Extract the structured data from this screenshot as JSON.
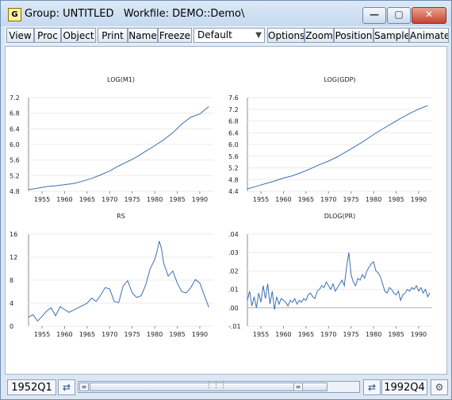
{
  "window": {
    "title": "Group: UNTITLED   Workfile: DEMO::Demo\\",
    "app_icon_letter": "G",
    "minimize_glyph": "—",
    "maximize_glyph": "▢",
    "close_glyph": "✕"
  },
  "toolbar": {
    "buttons": [
      "View",
      "Proc",
      "Object",
      "Print",
      "Name",
      "Freeze",
      "Options",
      "Zoom",
      "Position",
      "Sample",
      "Animate"
    ],
    "combo_value": "Default"
  },
  "status": {
    "start": "1952Q1",
    "end": "1992Q4",
    "left_arrows_icon": "swap-arrows-icon",
    "right_arrows_icon": "swap-arrows-icon",
    "settings_icon": "gear-icon"
  },
  "colors": {
    "line": "#3b6fb6",
    "axis": "#8c8c8c"
  },
  "chart_data": [
    {
      "type": "line",
      "title": "LOG(M1)",
      "xlim": [
        1952,
        1993
      ],
      "ylim": [
        4.8,
        7.2
      ],
      "yticks": [
        "4.8",
        "5.2",
        "5.6",
        "6.0",
        "6.4",
        "6.8",
        "7.2"
      ],
      "ytick_values": [
        4.8,
        5.2,
        5.6,
        6.0,
        6.4,
        6.8,
        7.2
      ],
      "xticks": [
        "1955",
        "1960",
        "1965",
        "1970",
        "1975",
        "1980",
        "1985",
        "1990"
      ],
      "x": [
        1952,
        1954,
        1956,
        1958,
        1960,
        1962,
        1964,
        1966,
        1968,
        1970,
        1972,
        1974,
        1976,
        1978,
        1980,
        1982,
        1984,
        1986,
        1988,
        1990,
        1992
      ],
      "values": [
        4.84,
        4.88,
        4.92,
        4.94,
        4.97,
        5.0,
        5.06,
        5.13,
        5.22,
        5.32,
        5.45,
        5.56,
        5.68,
        5.83,
        5.97,
        6.12,
        6.3,
        6.52,
        6.7,
        6.78,
        6.97
      ]
    },
    {
      "type": "line",
      "title": "LOG(GDP)",
      "xlim": [
        1952,
        1993
      ],
      "ylim": [
        4.4,
        7.6
      ],
      "yticks": [
        "4.4",
        "4.8",
        "5.2",
        "5.6",
        "6.0",
        "6.4",
        "6.8",
        "7.2",
        "7.6"
      ],
      "ytick_values": [
        4.4,
        4.8,
        5.2,
        5.6,
        6.0,
        6.4,
        6.8,
        7.2,
        7.6
      ],
      "xticks": [
        "1955",
        "1960",
        "1965",
        "1970",
        "1975",
        "1980",
        "1985",
        "1990"
      ],
      "x": [
        1952,
        1954,
        1956,
        1958,
        1960,
        1962,
        1964,
        1966,
        1968,
        1970,
        1972,
        1974,
        1976,
        1978,
        1980,
        1982,
        1984,
        1986,
        1988,
        1990,
        1992
      ],
      "values": [
        4.48,
        4.57,
        4.66,
        4.75,
        4.85,
        4.93,
        5.04,
        5.17,
        5.31,
        5.43,
        5.58,
        5.76,
        5.94,
        6.13,
        6.34,
        6.53,
        6.71,
        6.89,
        7.06,
        7.21,
        7.33
      ]
    },
    {
      "type": "line",
      "title": "RS",
      "xlim": [
        1952,
        1993
      ],
      "ylim": [
        0,
        16
      ],
      "yticks": [
        "0",
        "4",
        "8",
        "12",
        "16"
      ],
      "ytick_values": [
        0,
        4,
        8,
        12,
        16
      ],
      "xticks": [
        "1955",
        "1960",
        "1965",
        "1970",
        "1975",
        "1980",
        "1985",
        "1990"
      ],
      "x": [
        1952,
        1953,
        1954,
        1955,
        1956,
        1957,
        1958,
        1959,
        1960,
        1961,
        1962,
        1963,
        1964,
        1965,
        1966,
        1967,
        1968,
        1969,
        1970,
        1971,
        1972,
        1973,
        1974,
        1975,
        1976,
        1977,
        1978,
        1979,
        1980,
        1980.5,
        1981,
        1981.5,
        1982,
        1983,
        1984,
        1985,
        1986,
        1987,
        1988,
        1989,
        1990,
        1991,
        1992
      ],
      "values": [
        1.6,
        2.0,
        0.9,
        1.7,
        2.6,
        3.2,
        1.8,
        3.4,
        2.9,
        2.4,
        2.8,
        3.2,
        3.6,
        4.0,
        4.9,
        4.3,
        5.4,
        6.7,
        6.5,
        4.3,
        4.1,
        7.0,
        7.9,
        5.8,
        5.0,
        5.3,
        7.2,
        10.0,
        11.6,
        13.0,
        14.8,
        13.5,
        10.9,
        8.7,
        9.6,
        7.5,
        6.0,
        5.8,
        6.7,
        8.1,
        7.5,
        5.4,
        3.3
      ]
    },
    {
      "type": "line",
      "title": "DLOG(PR)",
      "xlim": [
        1952,
        1993
      ],
      "ylim": [
        -0.01,
        0.04
      ],
      "yticks": [
        "-.01",
        ".00",
        ".01",
        ".02",
        ".03",
        ".04"
      ],
      "ytick_values": [
        -0.01,
        0.0,
        0.01,
        0.02,
        0.03,
        0.04
      ],
      "xticks": [
        "1955",
        "1960",
        "1965",
        "1970",
        "1975",
        "1980",
        "1985",
        "1990"
      ],
      "x": [
        1952,
        1952.5,
        1953,
        1953.5,
        1954,
        1954.5,
        1955,
        1955.5,
        1956,
        1956.5,
        1957,
        1957.5,
        1958,
        1958.5,
        1959,
        1959.5,
        1960,
        1960.5,
        1961,
        1961.5,
        1962,
        1962.5,
        1963,
        1963.5,
        1964,
        1964.5,
        1965,
        1965.5,
        1966,
        1966.5,
        1967,
        1967.5,
        1968,
        1968.5,
        1969,
        1969.5,
        1970,
        1970.5,
        1971,
        1971.5,
        1972,
        1972.5,
        1973,
        1973.5,
        1974,
        1974.5,
        1975,
        1975.5,
        1976,
        1976.5,
        1977,
        1977.5,
        1978,
        1978.5,
        1979,
        1979.5,
        1980,
        1980.5,
        1981,
        1981.5,
        1982,
        1982.5,
        1983,
        1983.5,
        1984,
        1984.5,
        1985,
        1985.5,
        1986,
        1986.5,
        1987,
        1987.5,
        1988,
        1988.5,
        1989,
        1989.5,
        1990,
        1990.5,
        1991,
        1991.5,
        1992,
        1992.5
      ],
      "values": [
        0.004,
        0.009,
        0.001,
        0.006,
        0.0,
        0.008,
        0.003,
        0.012,
        0.005,
        0.013,
        0.002,
        0.009,
        -0.001,
        0.006,
        0.002,
        0.005,
        0.004,
        0.003,
        0.001,
        0.004,
        0.003,
        0.005,
        0.002,
        0.004,
        0.003,
        0.005,
        0.004,
        0.007,
        0.008,
        0.006,
        0.005,
        0.009,
        0.01,
        0.012,
        0.011,
        0.014,
        0.012,
        0.01,
        0.013,
        0.009,
        0.011,
        0.013,
        0.015,
        0.012,
        0.022,
        0.03,
        0.018,
        0.014,
        0.012,
        0.016,
        0.015,
        0.018,
        0.016,
        0.02,
        0.022,
        0.024,
        0.025,
        0.02,
        0.019,
        0.017,
        0.013,
        0.009,
        0.008,
        0.011,
        0.01,
        0.008,
        0.007,
        0.009,
        0.004,
        0.007,
        0.008,
        0.01,
        0.009,
        0.011,
        0.01,
        0.012,
        0.009,
        0.011,
        0.008,
        0.01,
        0.006,
        0.008
      ]
    }
  ]
}
